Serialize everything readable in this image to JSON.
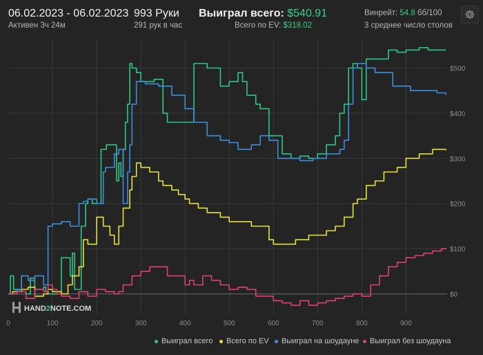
{
  "header": {
    "date_range": "06.02.2023 - 06.02.2023",
    "active": "Активен 3ч 24м",
    "hands": "993 Руки",
    "hands_per_hour": "291 рук в час",
    "won_total_label": "Выиграл всего:",
    "won_total_value": "$540.91",
    "ev_total_label": "Всего по EV:",
    "ev_total_value": "$318.02",
    "winrate_label": "Винрейт:",
    "winrate_value": "54.8",
    "winrate_unit": "бб/100",
    "avg_tables": "3 среднее число столов"
  },
  "watermark": {
    "part1": "HAND",
    "part2": "2",
    "part3": "NOTE.COM"
  },
  "colors": {
    "won": "#2fc786",
    "ev": "#e8e23a",
    "showdown": "#3b8fe0",
    "nonshowdown": "#e23f78",
    "grid": "#3a3a3a",
    "background": "#242424"
  },
  "legend": [
    {
      "label": "Выиграл всего",
      "color": "#2fc786"
    },
    {
      "label": "Всего по EV",
      "color": "#e8e23a"
    },
    {
      "label": "Выиграл на шоудауне",
      "color": "#3b8fe0"
    },
    {
      "label": "Выиграл без шоудауна",
      "color": "#e23f78"
    }
  ],
  "chart_data": {
    "type": "line",
    "xlim": [
      0,
      993
    ],
    "ylim": [
      -45,
      565
    ],
    "x_ticks": [
      "0",
      "100",
      "200",
      "300",
      "400",
      "500",
      "600",
      "700",
      "800",
      "900"
    ],
    "y_ticks": [
      "$0",
      "$100",
      "$200",
      "$300",
      "$400",
      "$500"
    ],
    "grid": true,
    "legend_position": "bottom",
    "series": [
      {
        "name": "Выиграл всего",
        "color": "#2fc786",
        "x": [
          0,
          5,
          12,
          25,
          40,
          50,
          60,
          80,
          85,
          90,
          120,
          140,
          145,
          150,
          165,
          175,
          180,
          190,
          210,
          222,
          240,
          245,
          250,
          255,
          260,
          265,
          270,
          275,
          280,
          290,
          300,
          330,
          350,
          360,
          380,
          390,
          420,
          450,
          480,
          500,
          520,
          530,
          540,
          560,
          570,
          590,
          620,
          640,
          650,
          660,
          680,
          700,
          720,
          740,
          750,
          760,
          770,
          780,
          790,
          800,
          810,
          830,
          860,
          880,
          900,
          930,
          950,
          990
        ],
        "values": [
          0,
          40,
          10,
          5,
          0,
          35,
          10,
          15,
          5,
          0,
          80,
          40,
          90,
          10,
          150,
          200,
          210,
          200,
          320,
          330,
          330,
          250,
          290,
          260,
          320,
          380,
          420,
          510,
          500,
          490,
          470,
          475,
          400,
          380,
          380,
          380,
          510,
          500,
          460,
          470,
          490,
          470,
          440,
          420,
          410,
          350,
          310,
          300,
          300,
          305,
          300,
          310,
          330,
          350,
          400,
          420,
          500,
          510,
          500,
          430,
          520,
          520,
          540,
          535,
          540,
          545,
          540,
          540
        ]
      },
      {
        "name": "Всего по EV",
        "color": "#e8e23a",
        "x": [
          0,
          10,
          30,
          45,
          60,
          80,
          90,
          100,
          120,
          135,
          145,
          160,
          170,
          180,
          200,
          215,
          230,
          240,
          250,
          260,
          275,
          280,
          290,
          300,
          320,
          340,
          350,
          370,
          385,
          400,
          410,
          430,
          450,
          480,
          500,
          520,
          550,
          570,
          590,
          600,
          620,
          650,
          680,
          700,
          720,
          740,
          760,
          780,
          790,
          810,
          830,
          850,
          880,
          900,
          930,
          960,
          990
        ],
        "values": [
          0,
          5,
          10,
          15,
          -5,
          0,
          10,
          5,
          0,
          20,
          40,
          60,
          120,
          110,
          170,
          150,
          130,
          110,
          150,
          190,
          230,
          260,
          290,
          280,
          270,
          250,
          240,
          230,
          220,
          210,
          200,
          190,
          180,
          170,
          160,
          160,
          150,
          150,
          120,
          110,
          110,
          120,
          130,
          130,
          140,
          150,
          170,
          200,
          210,
          240,
          250,
          270,
          280,
          300,
          310,
          320,
          318
        ]
      },
      {
        "name": "Выиграл на шоудауне",
        "color": "#3b8fe0",
        "x": [
          0,
          20,
          30,
          45,
          60,
          80,
          90,
          100,
          120,
          140,
          160,
          170,
          180,
          200,
          215,
          220,
          240,
          250,
          260,
          270,
          275,
          280,
          290,
          310,
          340,
          370,
          400,
          420,
          450,
          480,
          500,
          520,
          550,
          570,
          590,
          610,
          640,
          660,
          690,
          720,
          750,
          760,
          770,
          780,
          790,
          810,
          830,
          870,
          910,
          940,
          970,
          990
        ],
        "values": [
          0,
          10,
          40,
          30,
          40,
          20,
          150,
          155,
          160,
          150,
          200,
          205,
          210,
          200,
          270,
          280,
          310,
          320,
          200,
          270,
          330,
          420,
          470,
          465,
          460,
          440,
          410,
          380,
          350,
          340,
          335,
          320,
          330,
          350,
          340,
          300,
          300,
          295,
          300,
          310,
          320,
          340,
          420,
          500,
          510,
          500,
          490,
          460,
          450,
          450,
          445,
          440
        ]
      },
      {
        "name": "Выиграл без шоудауна",
        "color": "#e23f78",
        "x": [
          0,
          20,
          40,
          60,
          80,
          90,
          100,
          110,
          120,
          140,
          160,
          180,
          200,
          220,
          240,
          250,
          260,
          280,
          300,
          320,
          340,
          360,
          380,
          400,
          410,
          420,
          440,
          460,
          480,
          500,
          520,
          540,
          560,
          580,
          600,
          620,
          640,
          660,
          680,
          700,
          720,
          740,
          760,
          780,
          800,
          820,
          840,
          860,
          880,
          900,
          920,
          940,
          960,
          980,
          990
        ],
        "values": [
          0,
          5,
          -10,
          10,
          5,
          20,
          10,
          0,
          -5,
          -10,
          5,
          -5,
          10,
          5,
          0,
          5,
          20,
          40,
          50,
          60,
          60,
          40,
          40,
          20,
          30,
          20,
          40,
          30,
          20,
          10,
          15,
          10,
          -5,
          -5,
          -15,
          -20,
          -25,
          -15,
          -25,
          -20,
          -15,
          -10,
          -5,
          0,
          -5,
          20,
          40,
          60,
          70,
          80,
          85,
          90,
          95,
          100,
          102
        ]
      }
    ]
  }
}
